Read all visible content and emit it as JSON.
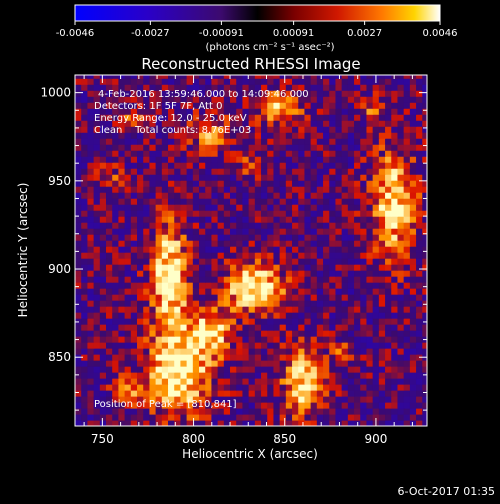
{
  "colorbar": {
    "tick_labels": [
      "-0.0046",
      "-0.0027",
      "-0.00091",
      "0.00091",
      "0.0027",
      "0.0046"
    ],
    "tick_values": [
      -0.0046,
      -0.0027,
      -0.00091,
      0.00091,
      0.0027,
      0.0046
    ],
    "range": [
      -0.0046,
      0.0046
    ],
    "unit_label": "(photons cm⁻² s⁻¹ asec⁻²)"
  },
  "chart_data": {
    "type": "heatmap",
    "title": "Reconstructed RHESSI Image",
    "xlabel": "Heliocentric X (arcsec)",
    "ylabel": "Heliocentric Y (arcsec)",
    "xlim": [
      735,
      928
    ],
    "ylim": [
      811,
      1010
    ],
    "xticks": [
      750,
      800,
      850,
      900
    ],
    "yticks": [
      850,
      900,
      950,
      1000
    ],
    "colormap": "red-temperature (blue negative, black zero, red-yellow-white positive)",
    "annotations": [
      "4-Feb-2016 13:59:46.000 to 14:09:46.000",
      "Detectors: 1F 5F 7F, Att 0",
      "Energy Range: 12.0 - 25.0 keV",
      "Clean    Total counts: 8.76E+03"
    ],
    "peak_label": "Position of Peak = [810,841]",
    "peak": [
      810,
      841
    ]
  },
  "footer": {
    "date": "6-Oct-2017 01:35"
  }
}
